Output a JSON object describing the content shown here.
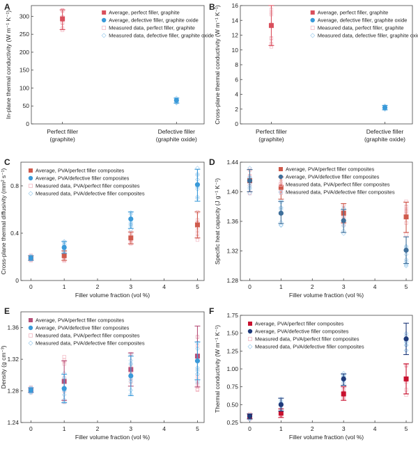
{
  "colors": {
    "red": "#d94f5c",
    "blue": "#3a9ad9",
    "red_light": "#f2b7c2",
    "blue_light": "#a9d2ef",
    "navy": "#1f3a7a",
    "crimson": "#c8102e",
    "slate": "#3f6f9a",
    "brick": "#cf5a4c",
    "rose": "#b6517a",
    "pink_marker": "#f47ba0"
  },
  "chart_data": [
    {
      "panel": "A",
      "type": "scatter",
      "ylabel": "In-plane thermal conductivity  (W m⁻¹ K⁻¹)",
      "ylim": [
        0,
        330
      ],
      "yticks": [
        0,
        50,
        100,
        150,
        200,
        250,
        300
      ],
      "categories": [
        "Perfect filler\n(graphite)",
        "Defective filler\n(graphite oxide)"
      ],
      "series": [
        {
          "name": "Average, perfect filler, graphite",
          "x": [
            0
          ],
          "mean": [
            293
          ],
          "err_low": [
            263
          ],
          "err_high": [
            318
          ]
        },
        {
          "name": "Average, defective filler, graphite oxide",
          "x": [
            1
          ],
          "mean": [
            66
          ],
          "err_low": [
            58
          ],
          "err_high": [
            72
          ]
        }
      ],
      "legend": [
        "Average, perfect filler, graphite",
        "Average, defective filler, graphite oxide",
        "Measured data, perfect filler, graphite",
        "Measured data, defective filler, graphite oxide"
      ],
      "legend_loc": "top-right"
    },
    {
      "panel": "B",
      "type": "scatter",
      "ylabel": "Cross-plane thermal conductivity  (W m⁻¹ K⁻¹)",
      "ylim": [
        0,
        16
      ],
      "yticks": [
        0,
        2,
        4,
        6,
        8,
        10,
        12,
        14,
        16
      ],
      "categories": [
        "Perfect filler\n(graphite)",
        "Defective filler\n(graphite oxide)"
      ],
      "series": [
        {
          "name": "Average, perfect filler, graphite",
          "x": [
            0
          ],
          "mean": [
            13.3
          ],
          "err_low": [
            10.6
          ],
          "err_high": [
            16.0
          ]
        },
        {
          "name": "Average, defective filler, graphite oxide",
          "x": [
            1
          ],
          "mean": [
            2.2
          ],
          "err_low": [
            1.9
          ],
          "err_high": [
            2.5
          ]
        }
      ],
      "legend": [
        "Average, perfect filler, graphite",
        "Average, defective filler, graphite oxide",
        "Measured data, perfect filler, graphite",
        "Measured data, defective filler, graphite oxide"
      ],
      "legend_loc": "top-right"
    },
    {
      "panel": "C",
      "type": "scatter",
      "xlabel": "Filler volume fraction (vol %)",
      "ylabel": "Cross-plane thermal diffusivity (mm² s⁻¹)",
      "xlim": [
        -0.3,
        5.2
      ],
      "xticks": [
        0,
        1,
        2,
        3,
        4,
        5
      ],
      "ylim": [
        0,
        1.0
      ],
      "yticks": [
        0,
        0.4,
        0.8
      ],
      "series": [
        {
          "name": "Average, PVA/perfect filler composites",
          "x": [
            0,
            1,
            3,
            5
          ],
          "mean": [
            0.19,
            0.21,
            0.36,
            0.47
          ],
          "err_low": [
            0.17,
            0.17,
            0.31,
            0.36
          ],
          "err_high": [
            0.21,
            0.25,
            0.41,
            0.58
          ]
        },
        {
          "name": "Average, PVA/defective filler composites",
          "x": [
            0,
            1,
            3,
            5
          ],
          "mean": [
            0.19,
            0.28,
            0.52,
            0.81
          ],
          "err_low": [
            0.17,
            0.23,
            0.44,
            0.67
          ],
          "err_high": [
            0.21,
            0.33,
            0.58,
            0.94
          ]
        }
      ],
      "legend": [
        "Average, PVA/perfect filler composites",
        "Average, PVA/defective filler composites",
        "Measured data, PVA/perfect filler composites",
        "Measured data, PVA/defective filler composites"
      ],
      "legend_loc": "top-left"
    },
    {
      "panel": "D",
      "type": "scatter",
      "xlabel": "Filler volume fraction (vol %)",
      "ylabel": "Specific heat capacity  (J g⁻¹ K⁻¹)",
      "xlim": [
        -0.3,
        5.2
      ],
      "xticks": [
        0,
        1,
        2,
        3,
        4,
        5
      ],
      "ylim": [
        1.28,
        1.44
      ],
      "yticks": [
        1.28,
        1.32,
        1.36,
        1.4,
        1.44
      ],
      "series": [
        {
          "name": "Average, PVA/perfect filler composites",
          "x": [
            0,
            1,
            3,
            5
          ],
          "mean": [
            1.415,
            1.406,
            1.371,
            1.366
          ],
          "err_low": [
            1.4,
            1.39,
            1.358,
            1.345
          ],
          "err_high": [
            1.43,
            1.42,
            1.384,
            1.386
          ]
        },
        {
          "name": "Average, PVA/defective filler composites",
          "x": [
            0,
            1,
            3,
            5
          ],
          "mean": [
            1.415,
            1.371,
            1.361,
            1.321
          ],
          "err_low": [
            1.4,
            1.357,
            1.345,
            1.303
          ],
          "err_high": [
            1.43,
            1.387,
            1.376,
            1.339
          ]
        }
      ],
      "legend": [
        "Average, PVA/perfect filler composites",
        "Average, PVA/defective filler composites",
        "Measured data, PVA/perfect filler composites",
        "Measured data, PVA/defective filler composites"
      ],
      "legend_loc": "top-right"
    },
    {
      "panel": "E",
      "type": "scatter",
      "xlabel": "Filler volume fraction (vol %)",
      "ylabel": "Density   (g cm⁻³)",
      "xlim": [
        -0.3,
        5.2
      ],
      "xticks": [
        0,
        1,
        2,
        3,
        4,
        5
      ],
      "ylim": [
        1.24,
        1.38
      ],
      "yticks": [
        1.24,
        1.28,
        1.32,
        1.36
      ],
      "series": [
        {
          "name": "Average, PVA/perfect filler composites",
          "x": [
            0,
            1,
            3,
            5
          ],
          "mean": [
            1.281,
            1.292,
            1.307,
            1.324
          ],
          "err_low": [
            1.278,
            1.268,
            1.286,
            1.285
          ],
          "err_high": [
            1.284,
            1.318,
            1.328,
            1.362
          ]
        },
        {
          "name": "Average, PVA/defective filler composites",
          "x": [
            0,
            1,
            3,
            5
          ],
          "mean": [
            1.281,
            1.283,
            1.299,
            1.318
          ],
          "err_low": [
            1.278,
            1.265,
            1.274,
            1.294
          ],
          "err_high": [
            1.284,
            1.301,
            1.324,
            1.342
          ]
        }
      ],
      "legend": [
        "Average, PVA/perfect filler composites",
        "Average, PVA/defective filler composites",
        "Measured data, PVA/perfect filler composites",
        "Measured data, PVA/defective filler composites"
      ],
      "legend_loc": "top-left"
    },
    {
      "panel": "F",
      "type": "scatter",
      "xlabel": "Filler volume fraction (vol %)",
      "ylabel": "Thermal conductivity  (W m⁻¹ K⁻¹)",
      "xlim": [
        -0.3,
        5.2
      ],
      "xticks": [
        0,
        1,
        2,
        3,
        4,
        5
      ],
      "ylim": [
        0.25,
        1.75
      ],
      "yticks": [
        0.25,
        0.5,
        0.75,
        1.0,
        1.25,
        1.5,
        1.75
      ],
      "series": [
        {
          "name": "Average, PVA/perfect filler composites",
          "x": [
            0,
            1,
            3,
            5
          ],
          "mean": [
            0.34,
            0.38,
            0.65,
            0.86
          ],
          "err_low": [
            0.3,
            0.32,
            0.56,
            0.65
          ],
          "err_high": [
            0.37,
            0.44,
            0.75,
            1.07
          ]
        },
        {
          "name": "Average, PVA/defective filler composites",
          "x": [
            0,
            1,
            3,
            5
          ],
          "mean": [
            0.34,
            0.5,
            0.86,
            1.42
          ],
          "err_low": [
            0.3,
            0.41,
            0.77,
            1.2
          ],
          "err_high": [
            0.37,
            0.59,
            0.93,
            1.64
          ]
        }
      ],
      "legend": [
        "Average, PVA/perfect filler composites",
        "Average, PVA/defective filler composites",
        "Measured data, PVA/perfect filler composites",
        "Measured data, PVA/defective filler composites"
      ],
      "legend_loc": "top-left"
    }
  ]
}
